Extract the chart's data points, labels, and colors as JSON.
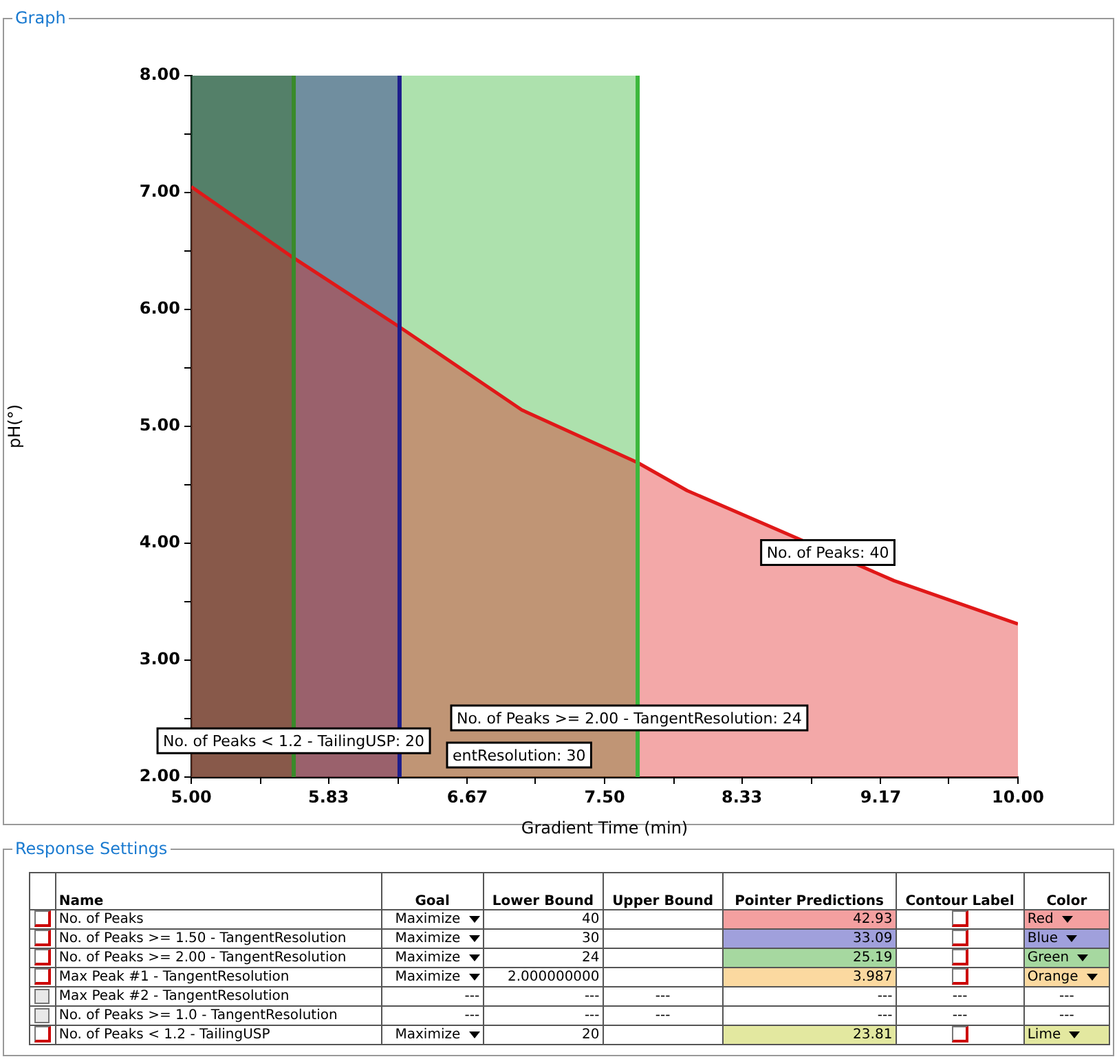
{
  "chart_data": [
    {
      "type": "area",
      "title": "Graph",
      "xlabel": "Gradient Time (min)",
      "ylabel": "pH(°)",
      "x": [
        5.0,
        5.62,
        6.26,
        7.0,
        7.7,
        8.0,
        8.67,
        9.25,
        10.0
      ],
      "series": [
        {
          "color": "#e01818",
          "values": [
            7.05,
            6.44,
            5.85,
            5.14,
            4.69,
            4.45,
            4.04,
            3.68,
            3.31
          ]
        }
      ],
      "xlim": [
        5,
        10
      ],
      "ylim": [
        2,
        8
      ],
      "xticks": [
        {
          "value": 5,
          "label": "5.00"
        },
        {
          "value": 5.42,
          "label": null
        },
        {
          "value": 5.83,
          "label": "5.83"
        },
        {
          "value": 6.25,
          "label": null
        },
        {
          "value": 6.67,
          "label": "6.67"
        },
        {
          "value": 7.08,
          "label": null
        },
        {
          "value": 7.5,
          "label": "7.50"
        },
        {
          "value": 7.92,
          "label": null
        },
        {
          "value": 8.33,
          "label": "8.33"
        },
        {
          "value": 8.75,
          "label": null
        },
        {
          "value": 9.17,
          "label": "9.17"
        },
        {
          "value": 9.58,
          "label": null
        },
        {
          "value": 10,
          "label": "10.00"
        }
      ],
      "yticks": [
        {
          "value": 2,
          "label": "2.00"
        },
        {
          "value": 2.5,
          "label": null
        },
        {
          "value": 3,
          "label": "3.00"
        },
        {
          "value": 3.5,
          "label": null
        },
        {
          "value": 4,
          "label": "4.00"
        },
        {
          "value": 4.5,
          "label": null
        },
        {
          "value": 5,
          "label": "5.00"
        },
        {
          "value": 5.5,
          "label": null
        },
        {
          "value": 6,
          "label": "6.00"
        },
        {
          "value": 6.5,
          "label": null
        },
        {
          "value": 7,
          "label": "7.00"
        },
        {
          "value": 7.5,
          "label": null
        },
        {
          "value": 8,
          "label": "8.00"
        }
      ],
      "bands": [
        {
          "axis": "x",
          "from": 5,
          "to": 7.7,
          "color": "#3cb83c"
        },
        {
          "axis": "x",
          "from": 5,
          "to": 6.26,
          "color": "#1c1c8c"
        },
        {
          "axis": "x",
          "from": 5,
          "to": 5.62,
          "color": "#2e6e20"
        }
      ],
      "ref_lines": [
        {
          "axis": "x",
          "value": 5.62,
          "color": "#3a8a2a"
        },
        {
          "axis": "x",
          "value": 6.26,
          "color": "#1c1c8c"
        },
        {
          "axis": "x",
          "value": 7.7,
          "color": "#3cb83c"
        }
      ],
      "annotations": [
        {
          "text": "No. of Peaks: 40",
          "x": 8.85,
          "y": 3.92
        },
        "No. of Peaks >= 2.00 - TangentResolution: 24",
        {
          "text": "No. of Peaks < 1.2 - TailingUSP: 20",
          "x": 5.62,
          "y": 2.31
        },
        "entResolution: 30"
      ]
    },
    {
      "type": "other",
      "title": "Response Settings",
      "categories": [
        null,
        "Name",
        "Goal",
        "Lower Bound",
        "Upper Bound",
        "Pointer Predictions",
        "Contour Label",
        "Color"
      ],
      "y_categories": [
        "No. of Peaks",
        "No. of Peaks >= 1.50 - TangentResolution",
        "No. of Peaks >= 2.00 - TangentResolution",
        "Max Peak #1 - TangentResolution",
        "Max Peak #2 - TangentResolution",
        "No. of Peaks >= 1.0 - TangentResolution",
        "No. of Peaks < 1.2 - TailingUSP"
      ],
      "cell_labels": [
        [
          "Maximize",
          "40",
          null,
          "42.93",
          null,
          "Red"
        ],
        [
          "Maximize",
          "30",
          null,
          "33.09",
          null,
          "Blue"
        ],
        [
          "Maximize",
          "24",
          null,
          "25.19",
          null,
          "Green"
        ],
        [
          "Maximize",
          "2.000000000",
          null,
          "3.987",
          null,
          "Orange"
        ],
        [
          "---",
          "---",
          "---",
          "---",
          "---",
          "---"
        ],
        [
          "---",
          "---",
          "---",
          "---",
          "---",
          "---"
        ],
        [
          "Maximize",
          "20",
          null,
          "23.81",
          null,
          "Lime"
        ]
      ],
      "colors": [
        "#f4a0a0",
        "#a0a0dc",
        "#a6d8a0",
        "#fbd9a0",
        null,
        null,
        "#e3e8a0"
      ]
    }
  ]
}
